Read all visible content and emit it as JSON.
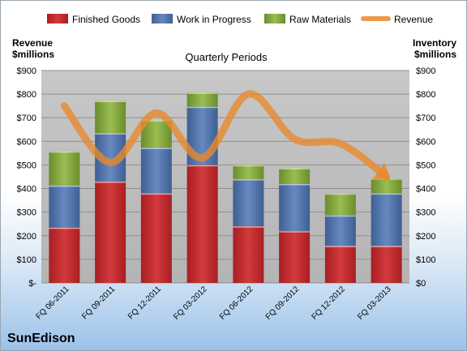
{
  "legend": [
    {
      "label": "Finished Goods",
      "color": "#c0262b"
    },
    {
      "label": "Work in Progress",
      "color": "#4a6fa8"
    },
    {
      "label": "Raw Materials",
      "color": "#7fa33a"
    },
    {
      "label": "Revenue",
      "color": "#e8892e"
    }
  ],
  "left_axis_title": [
    "Revenue",
    "$millions"
  ],
  "right_axis_title": [
    "Inventory",
    "$millions"
  ],
  "company": "SunEdison",
  "chart_data": {
    "type": "bar",
    "stacked": true,
    "title": "Quarterly Periods",
    "categories": [
      "FQ 06-2011",
      "FQ 09-2011",
      "FQ 12-2011",
      "FQ 03-2012",
      "FQ 06-2012",
      "FQ 09-2012",
      "FQ 12-2012",
      "FQ 03-2013"
    ],
    "series": [
      {
        "name": "Finished Goods",
        "type": "bar",
        "axis": "right",
        "values": [
          235,
          430,
          380,
          500,
          240,
          220,
          157,
          157
        ]
      },
      {
        "name": "Work in Progress",
        "type": "bar",
        "axis": "right",
        "values": [
          178,
          205,
          193,
          247,
          200,
          200,
          130,
          223
        ]
      },
      {
        "name": "Raw Materials",
        "type": "bar",
        "axis": "right",
        "values": [
          145,
          137,
          117,
          60,
          60,
          67,
          93,
          63
        ]
      },
      {
        "name": "Revenue",
        "type": "line",
        "axis": "left",
        "values": [
          750,
          510,
          720,
          530,
          800,
          610,
          590,
          450
        ]
      }
    ],
    "ylim": [
      0,
      900
    ],
    "yticks_left": [
      "$-",
      "$100",
      "$200",
      "$300",
      "$400",
      "$500",
      "$600",
      "$700",
      "$800",
      "$900"
    ],
    "yticks_right": [
      "$0",
      "$100",
      "$200",
      "$300",
      "$400",
      "$500",
      "$600",
      "$700",
      "$800",
      "$900"
    ],
    "grid": true,
    "legend_position": "top"
  }
}
